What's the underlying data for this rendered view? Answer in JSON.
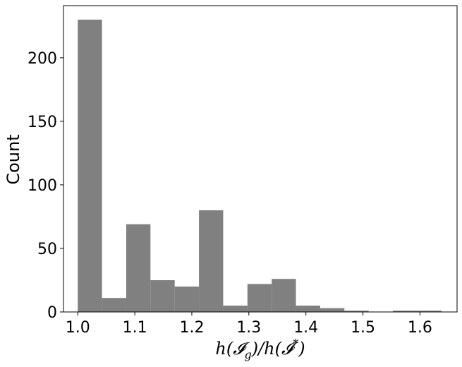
{
  "chart_data": {
    "type": "bar",
    "title": "",
    "xlabel": "h(𝓘g)/h(𝓘*)",
    "xlabel_parts": {
      "h1": "h(",
      "sym1": "𝓘",
      "sub": "g",
      "mid": ")/h(",
      "sym2": "𝓘",
      "sup": "*",
      "end": ")"
    },
    "ylabel": "Count",
    "xlim": [
      0.975,
      1.665
    ],
    "ylim": [
      0,
      241
    ],
    "xticks": [
      1.0,
      1.1,
      1.2,
      1.3,
      1.4,
      1.5,
      1.6
    ],
    "xtick_labels": [
      "1.0",
      "1.1",
      "1.2",
      "1.3",
      "1.4",
      "1.5",
      "1.6"
    ],
    "yticks": [
      0,
      50,
      100,
      150,
      200
    ],
    "ytick_labels": [
      "0",
      "50",
      "100",
      "150",
      "200"
    ],
    "bin_edges": [
      1.0,
      1.0425,
      1.085,
      1.1275,
      1.17,
      1.2125,
      1.255,
      1.2975,
      1.34,
      1.3825,
      1.425,
      1.4675,
      1.51,
      1.5525,
      1.595,
      1.6375
    ],
    "counts": [
      230,
      11,
      69,
      25,
      20,
      80,
      5,
      22,
      26,
      5,
      3,
      1,
      0,
      1,
      1
    ],
    "bar_color": "#808080",
    "grid": false,
    "legend": "none"
  }
}
